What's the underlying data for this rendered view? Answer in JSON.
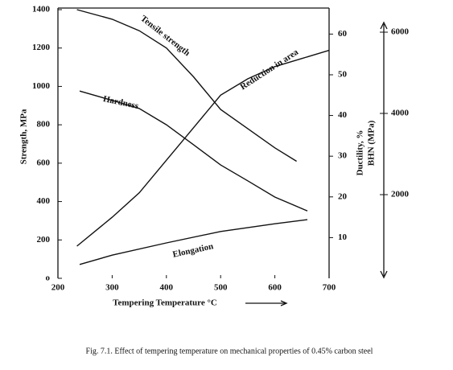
{
  "chart_data": {
    "type": "line",
    "caption": "Fig. 7.1. Effect of tempering temperature on mechanical properties of 0.45% carbon steel",
    "x_label": "Tempering Temperature °C",
    "y_label": "Strength, MPa",
    "y2_label": "Ductility, %",
    "y3_label": "BHN (MPa)",
    "xlim": [
      200,
      700
    ],
    "xticks": [
      200,
      300,
      400,
      500,
      600,
      700
    ],
    "ylim": [
      0,
      1400
    ],
    "yticks": [
      {
        "value": 0,
        "label": "o"
      },
      200,
      400,
      600,
      800,
      1000,
      1200,
      1400
    ],
    "y2lim": [
      0,
      66
    ],
    "y2ticks": [
      10,
      20,
      30,
      40,
      50,
      60
    ],
    "y3lim": [
      0,
      6000
    ],
    "y3ticks": [
      2000,
      4000,
      6000
    ],
    "series": [
      {
        "name": "Tensile strength",
        "color": "#111111",
        "axis": "y",
        "x": [
          235,
          300,
          350,
          400,
          450,
          500,
          550,
          600,
          640
        ],
        "values": [
          1400,
          1350,
          1290,
          1200,
          1050,
          880,
          780,
          680,
          610
        ]
      },
      {
        "name": "Hardness",
        "color": "#111111",
        "axis": "y3",
        "x": [
          240,
          300,
          350,
          400,
          450,
          500,
          550,
          600,
          660
        ],
        "values": [
          4550,
          4320,
          4120,
          3720,
          3230,
          2730,
          2340,
          1940,
          1600
        ]
      },
      {
        "name": "Reduction in area",
        "color": "#111111",
        "axis": "y2",
        "x": [
          235,
          300,
          350,
          400,
          450,
          500,
          550,
          600,
          650,
          700
        ],
        "values": [
          7.9,
          15,
          21,
          29,
          37,
          45,
          49,
          52,
          54,
          56
        ]
      },
      {
        "name": "Elongation",
        "color": "#111111",
        "axis": "y2",
        "x": [
          240,
          300,
          400,
          500,
          600,
          660
        ],
        "values": [
          3.4,
          5.7,
          8.7,
          11.5,
          13.4,
          14.4
        ]
      }
    ]
  }
}
